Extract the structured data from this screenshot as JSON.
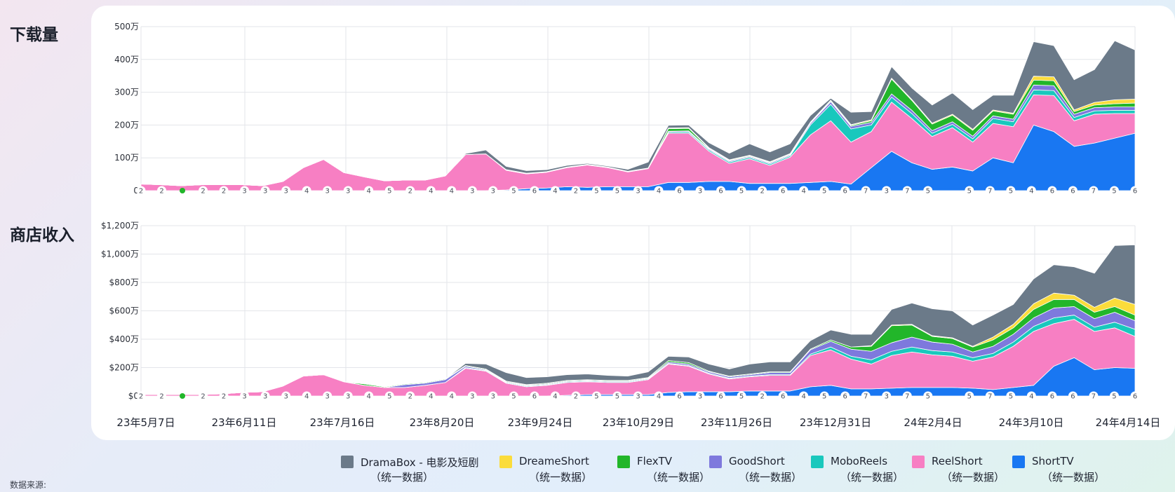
{
  "sections": {
    "downloads_title": "下载量",
    "revenue_title": "商店收入"
  },
  "source_label": "数据来源:",
  "colors": {
    "DramaBox": "#6b7a89",
    "DreameShort": "#fbdc3b",
    "FlexTV": "#22b62a",
    "GoodShort": "#7e79dd",
    "MoboReels": "#19c8bd",
    "ReelShort": "#f77fc3",
    "ShortTV": "#1977f2"
  },
  "legend": [
    {
      "key": "DramaBox",
      "name": "DramaBox - 电影及短剧",
      "sub": "（统一数据）"
    },
    {
      "key": "DreameShort",
      "name": "DreameShort",
      "sub": "（统一数据）"
    },
    {
      "key": "FlexTV",
      "name": "FlexTV",
      "sub": "（统一数据）"
    },
    {
      "key": "GoodShort",
      "name": "GoodShort",
      "sub": "（统一数据）"
    },
    {
      "key": "MoboReels",
      "name": "MoboReels",
      "sub": "（统一数据）"
    },
    {
      "key": "ReelShort",
      "name": "ReelShort",
      "sub": "（统一数据）"
    },
    {
      "key": "ShortTV",
      "name": "ShortTV",
      "sub": "（统一数据）"
    }
  ],
  "x_tick_labels": [
    "23年5月7日",
    "23年6月11日",
    "23年7月16日",
    "23年8月20日",
    "23年9月24日",
    "23年10月29日",
    "23年11月26日",
    "23年12月31日",
    "24年2月4日",
    "24年3月10日",
    "24年4月14日"
  ],
  "rank_markers": [
    "2",
    "2",
    "●",
    "2",
    "2",
    "3",
    "3",
    "3",
    "4",
    "3",
    "3",
    "4",
    "5",
    "2",
    "4",
    "4",
    "3",
    "3",
    "5",
    "6",
    "4",
    "2",
    "5",
    "5",
    "3",
    "4",
    "6",
    "3",
    "6",
    "5",
    "2",
    "6",
    "4",
    "5",
    "6",
    "7",
    "3",
    "7",
    "5",
    "",
    "5",
    "7",
    "5",
    "4",
    "6",
    "6",
    "7",
    "5",
    "6"
  ],
  "chart_data": [
    {
      "type": "area",
      "stacked": true,
      "title": "下载量",
      "x_ticks": [
        "23年5月7日",
        "23年6月11日",
        "23年7月16日",
        "23年8月20日",
        "23年9月24日",
        "23年10月29日",
        "23年11月26日",
        "23年12月31日",
        "24年2月4日",
        "24年3月10日",
        "24年4月14日"
      ],
      "y_ticks": [
        "0",
        "100万",
        "200万",
        "300万",
        "400万",
        "500万"
      ],
      "ylim": [
        0,
        500
      ],
      "y_unit": "万",
      "points": 50,
      "grid": true,
      "series": [
        {
          "name": "ShortTV",
          "values": [
            0,
            0,
            0,
            0,
            0,
            0,
            0,
            0,
            0,
            0,
            0,
            0,
            0,
            0,
            0,
            0,
            0,
            0,
            2,
            6,
            8,
            12,
            10,
            12,
            12,
            12,
            25,
            25,
            28,
            28,
            22,
            22,
            22,
            25,
            28,
            20,
            70,
            120,
            85,
            65,
            72,
            60,
            100,
            85,
            200,
            180,
            135,
            145,
            160,
            175
          ]
        },
        {
          "name": "ReelShort",
          "values": [
            20,
            18,
            15,
            18,
            18,
            18,
            15,
            28,
            70,
            95,
            55,
            42,
            30,
            32,
            32,
            45,
            110,
            112,
            60,
            45,
            48,
            58,
            68,
            58,
            45,
            55,
            150,
            150,
            92,
            55,
            75,
            55,
            80,
            145,
            185,
            128,
            110,
            150,
            135,
            100,
            120,
            88,
            105,
            110,
            92,
            110,
            78,
            88,
            75,
            60
          ]
        },
        {
          "name": "MoboReels",
          "values": [
            0,
            0,
            0,
            0,
            0,
            0,
            0,
            0,
            0,
            0,
            0,
            0,
            0,
            0,
            0,
            0,
            0,
            0,
            1,
            1,
            1,
            1,
            1,
            1,
            1,
            1,
            3,
            4,
            4,
            4,
            4,
            4,
            4,
            30,
            50,
            40,
            20,
            15,
            15,
            10,
            10,
            10,
            15,
            15,
            15,
            15,
            10,
            10,
            10,
            10
          ]
        },
        {
          "name": "GoodShort",
          "values": [
            0,
            0,
            0,
            0,
            0,
            0,
            0,
            0,
            0,
            0,
            0,
            0,
            0,
            0,
            0,
            0,
            0,
            0,
            1,
            1,
            1,
            1,
            1,
            1,
            1,
            1,
            3,
            3,
            3,
            3,
            3,
            3,
            3,
            5,
            8,
            8,
            8,
            10,
            10,
            8,
            8,
            8,
            8,
            8,
            15,
            15,
            10,
            10,
            10,
            10
          ]
        },
        {
          "name": "FlexTV",
          "values": [
            0,
            0,
            0,
            0,
            0,
            0,
            0,
            0,
            0,
            0,
            0,
            0,
            0,
            0,
            0,
            0,
            0,
            0,
            0,
            0,
            0,
            0,
            0,
            0,
            0,
            0,
            8,
            8,
            2,
            2,
            2,
            2,
            2,
            2,
            3,
            3,
            5,
            45,
            30,
            20,
            20,
            18,
            15,
            15,
            15,
            15,
            8,
            8,
            10,
            12
          ]
        },
        {
          "name": "DreameShort",
          "values": [
            0,
            0,
            0,
            0,
            0,
            0,
            0,
            0,
            0,
            0,
            0,
            0,
            0,
            0,
            0,
            0,
            0,
            0,
            0,
            0,
            0,
            0,
            0,
            0,
            0,
            0,
            2,
            2,
            2,
            2,
            2,
            2,
            2,
            2,
            2,
            2,
            3,
            3,
            3,
            3,
            3,
            3,
            3,
            3,
            12,
            12,
            5,
            8,
            12,
            12
          ]
        },
        {
          "name": "DramaBox",
          "values": [
            0,
            0,
            0,
            0,
            0,
            0,
            0,
            0,
            0,
            0,
            0,
            0,
            0,
            0,
            0,
            0,
            3,
            12,
            10,
            8,
            6,
            5,
            3,
            3,
            6,
            18,
            8,
            8,
            15,
            20,
            35,
            30,
            30,
            20,
            6,
            38,
            25,
            35,
            35,
            55,
            65,
            60,
            45,
            55,
            105,
            95,
            92,
            100,
            180,
            150
          ]
        }
      ]
    },
    {
      "type": "area",
      "stacked": true,
      "title": "商店收入",
      "x_ticks": [
        "23年5月7日",
        "23年6月11日",
        "23年7月16日",
        "23年8月20日",
        "23年9月24日",
        "23年10月29日",
        "23年11月26日",
        "23年12月31日",
        "24年2月4日",
        "24年3月10日",
        "24年4月14日"
      ],
      "y_ticks": [
        "$0",
        "$200万",
        "$400万",
        "$600万",
        "$800万",
        "$1,000万",
        "$1,200万"
      ],
      "ylim": [
        0,
        1200
      ],
      "y_unit": "万",
      "points": 50,
      "grid": true,
      "series": [
        {
          "name": "ShortTV",
          "values": [
            0,
            0,
            0,
            0,
            0,
            0,
            0,
            0,
            0,
            0,
            0,
            0,
            0,
            0,
            0,
            0,
            0,
            0,
            0,
            0,
            0,
            5,
            10,
            10,
            10,
            10,
            25,
            30,
            30,
            30,
            35,
            35,
            35,
            65,
            75,
            50,
            50,
            55,
            60,
            60,
            60,
            55,
            45,
            60,
            75,
            210,
            270,
            185,
            200,
            195
          ]
        },
        {
          "name": "ReelShort",
          "values": [
            10,
            10,
            10,
            10,
            15,
            25,
            30,
            70,
            140,
            150,
            100,
            75,
            60,
            60,
            75,
            95,
            195,
            175,
            90,
            65,
            75,
            90,
            90,
            85,
            85,
            105,
            200,
            180,
            125,
            90,
            100,
            110,
            110,
            220,
            250,
            210,
            175,
            230,
            250,
            230,
            220,
            190,
            230,
            290,
            380,
            300,
            270,
            270,
            280,
            225
          ]
        },
        {
          "name": "MoboReels",
          "values": [
            0,
            0,
            0,
            0,
            0,
            0,
            0,
            0,
            0,
            0,
            0,
            0,
            0,
            0,
            0,
            0,
            5,
            5,
            5,
            5,
            5,
            5,
            5,
            5,
            5,
            5,
            5,
            5,
            5,
            5,
            5,
            5,
            5,
            10,
            20,
            20,
            30,
            30,
            35,
            30,
            30,
            25,
            25,
            30,
            35,
            40,
            30,
            30,
            40,
            50
          ]
        },
        {
          "name": "GoodShort",
          "values": [
            0,
            0,
            0,
            0,
            0,
            0,
            0,
            0,
            0,
            0,
            0,
            0,
            0,
            20,
            15,
            20,
            10,
            5,
            5,
            5,
            5,
            5,
            5,
            5,
            5,
            5,
            10,
            10,
            10,
            10,
            10,
            15,
            15,
            30,
            40,
            50,
            60,
            60,
            70,
            60,
            55,
            40,
            50,
            55,
            60,
            70,
            60,
            60,
            70,
            60
          ]
        },
        {
          "name": "FlexTV",
          "values": [
            0,
            0,
            0,
            0,
            0,
            0,
            0,
            0,
            0,
            0,
            0,
            10,
            5,
            5,
            5,
            5,
            5,
            5,
            5,
            5,
            5,
            5,
            5,
            5,
            5,
            5,
            10,
            10,
            5,
            5,
            5,
            5,
            5,
            5,
            10,
            15,
            35,
            120,
            85,
            40,
            40,
            35,
            45,
            45,
            60,
            60,
            50,
            45,
            40,
            40
          ]
        },
        {
          "name": "DreameShort",
          "values": [
            0,
            0,
            0,
            0,
            0,
            0,
            0,
            0,
            0,
            0,
            0,
            0,
            0,
            0,
            0,
            0,
            0,
            0,
            0,
            0,
            0,
            0,
            0,
            0,
            0,
            0,
            0,
            0,
            0,
            0,
            0,
            0,
            0,
            0,
            0,
            0,
            5,
            5,
            5,
            5,
            5,
            5,
            20,
            25,
            40,
            45,
            30,
            35,
            60,
            75
          ]
        },
        {
          "name": "DramaBox",
          "values": [
            0,
            0,
            0,
            0,
            0,
            0,
            0,
            0,
            0,
            0,
            0,
            0,
            0,
            0,
            0,
            0,
            15,
            35,
            60,
            50,
            45,
            40,
            40,
            35,
            30,
            40,
            30,
            40,
            50,
            50,
            70,
            70,
            70,
            60,
            70,
            90,
            80,
            110,
            150,
            190,
            190,
            150,
            155,
            140,
            175,
            200,
            200,
            240,
            370,
            420
          ]
        }
      ]
    }
  ]
}
